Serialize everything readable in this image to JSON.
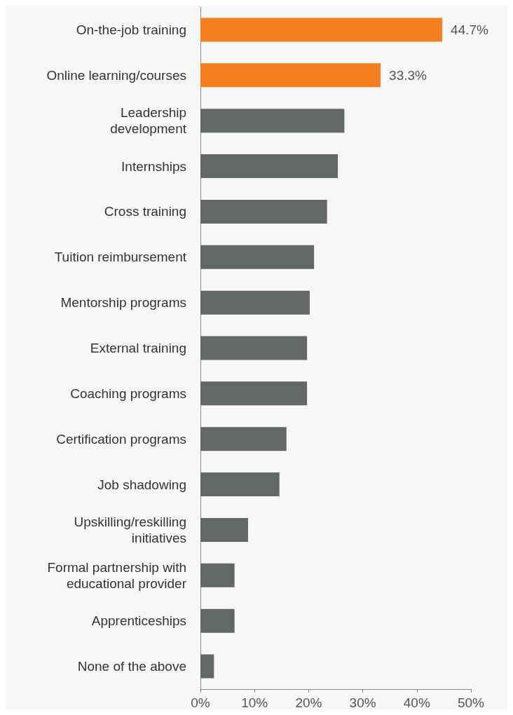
{
  "chart_data": {
    "type": "bar",
    "orientation": "horizontal",
    "categories": [
      "On-the-job training",
      "Online learning/courses",
      "Leadership\ndevelopment",
      "Internships",
      "Cross training",
      "Tuition reimbursement",
      "Mentorship programs",
      "External training",
      "Coaching programs",
      "Certification programs",
      "Job shadowing",
      "Upskilling/reskilling\ninitiatives",
      "Formal partnership with\neducational provider",
      "Apprenticeships",
      "None of the above"
    ],
    "values": [
      44.7,
      33.3,
      26.6,
      25.4,
      23.4,
      21.0,
      20.2,
      19.7,
      19.7,
      15.9,
      14.6,
      8.8,
      6.3,
      6.3,
      2.5
    ],
    "value_labels": [
      "44.7%",
      "33.3%",
      null,
      null,
      null,
      null,
      null,
      null,
      null,
      null,
      null,
      null,
      null,
      null,
      null
    ],
    "colors": [
      "#f47f20",
      "#f47f20",
      "#646767",
      "#646767",
      "#646767",
      "#646767",
      "#646767",
      "#646767",
      "#646767",
      "#646767",
      "#646767",
      "#646767",
      "#646767",
      "#646767",
      "#646767"
    ],
    "xlim": [
      0,
      50
    ],
    "xticks": [
      {
        "value": 0,
        "label": "0%"
      },
      {
        "value": 10,
        "label": "10%"
      },
      {
        "value": 20,
        "label": "20%"
      },
      {
        "value": 30,
        "label": "30%"
      },
      {
        "value": 40,
        "label": "40%"
      },
      {
        "value": 50,
        "label": "50%"
      }
    ],
    "grid": false
  }
}
